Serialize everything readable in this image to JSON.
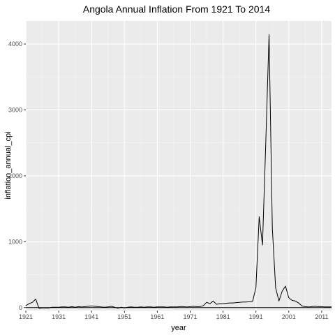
{
  "chart_data": {
    "type": "line",
    "title": "Angola Annual Inflation From 1921 To 2014",
    "xlabel": "year",
    "ylabel": "inflation_annual_cpi",
    "xlim": [
      1921,
      2014
    ],
    "ylim": [
      -45,
      4350
    ],
    "x_ticks": [
      1921,
      1931,
      1941,
      1951,
      1961,
      1971,
      1981,
      1991,
      2001,
      2011
    ],
    "y_ticks": [
      0,
      1000,
      2000,
      3000,
      4000
    ],
    "grid": true,
    "legend": "none",
    "colors": {
      "panel": "#ebebeb",
      "grid_major": "#ffffff",
      "grid_minor": "#f5f5f5",
      "line": "#000000",
      "tick_label": "#4d4d4d"
    },
    "series": [
      {
        "x": [
          1921,
          1922,
          1923,
          1924,
          1925,
          1926,
          1927,
          1928,
          1929,
          1930,
          1931,
          1932,
          1933,
          1934,
          1935,
          1936,
          1937,
          1938,
          1939,
          1940,
          1941,
          1942,
          1943,
          1944,
          1945,
          1946,
          1947,
          1948,
          1949,
          1950,
          1951,
          1952,
          1953,
          1954,
          1955,
          1956,
          1957,
          1958,
          1959,
          1960,
          1961,
          1962,
          1963,
          1964,
          1965,
          1966,
          1967,
          1968,
          1969,
          1970,
          1971,
          1972,
          1973,
          1974,
          1975,
          1976,
          1977,
          1978,
          1979,
          1980,
          1981,
          1982,
          1983,
          1984,
          1985,
          1986,
          1987,
          1988,
          1989,
          1990,
          1991,
          1992,
          1993,
          1994,
          1995,
          1996,
          1997,
          1998,
          1999,
          2000,
          2001,
          2002,
          2003,
          2004,
          2005,
          2006,
          2007,
          2008,
          2009,
          2010,
          2011,
          2012,
          2013,
          2014
        ],
        "y": [
          30,
          60,
          80,
          130,
          -10,
          -5,
          -5,
          -5,
          5,
          5,
          5,
          10,
          10,
          5,
          15,
          5,
          15,
          10,
          15,
          20,
          25,
          20,
          15,
          10,
          5,
          10,
          20,
          5,
          -10,
          5,
          -5,
          5,
          10,
          5,
          5,
          10,
          5,
          10,
          10,
          5,
          10,
          10,
          10,
          5,
          10,
          10,
          10,
          15,
          15,
          10,
          15,
          20,
          15,
          15,
          30,
          80,
          60,
          100,
          50,
          60,
          60,
          65,
          70,
          70,
          75,
          80,
          85,
          85,
          90,
          95,
          300,
          1380,
          950,
          2500,
          4145,
          1200,
          300,
          100,
          250,
          325,
          150,
          110,
          100,
          70,
          25,
          15,
          10,
          15,
          20,
          15,
          15,
          10,
          10,
          10
        ]
      },
      {
        "x": [
          1921,
          2014
        ],
        "y": [
          0,
          0
        ]
      }
    ]
  }
}
